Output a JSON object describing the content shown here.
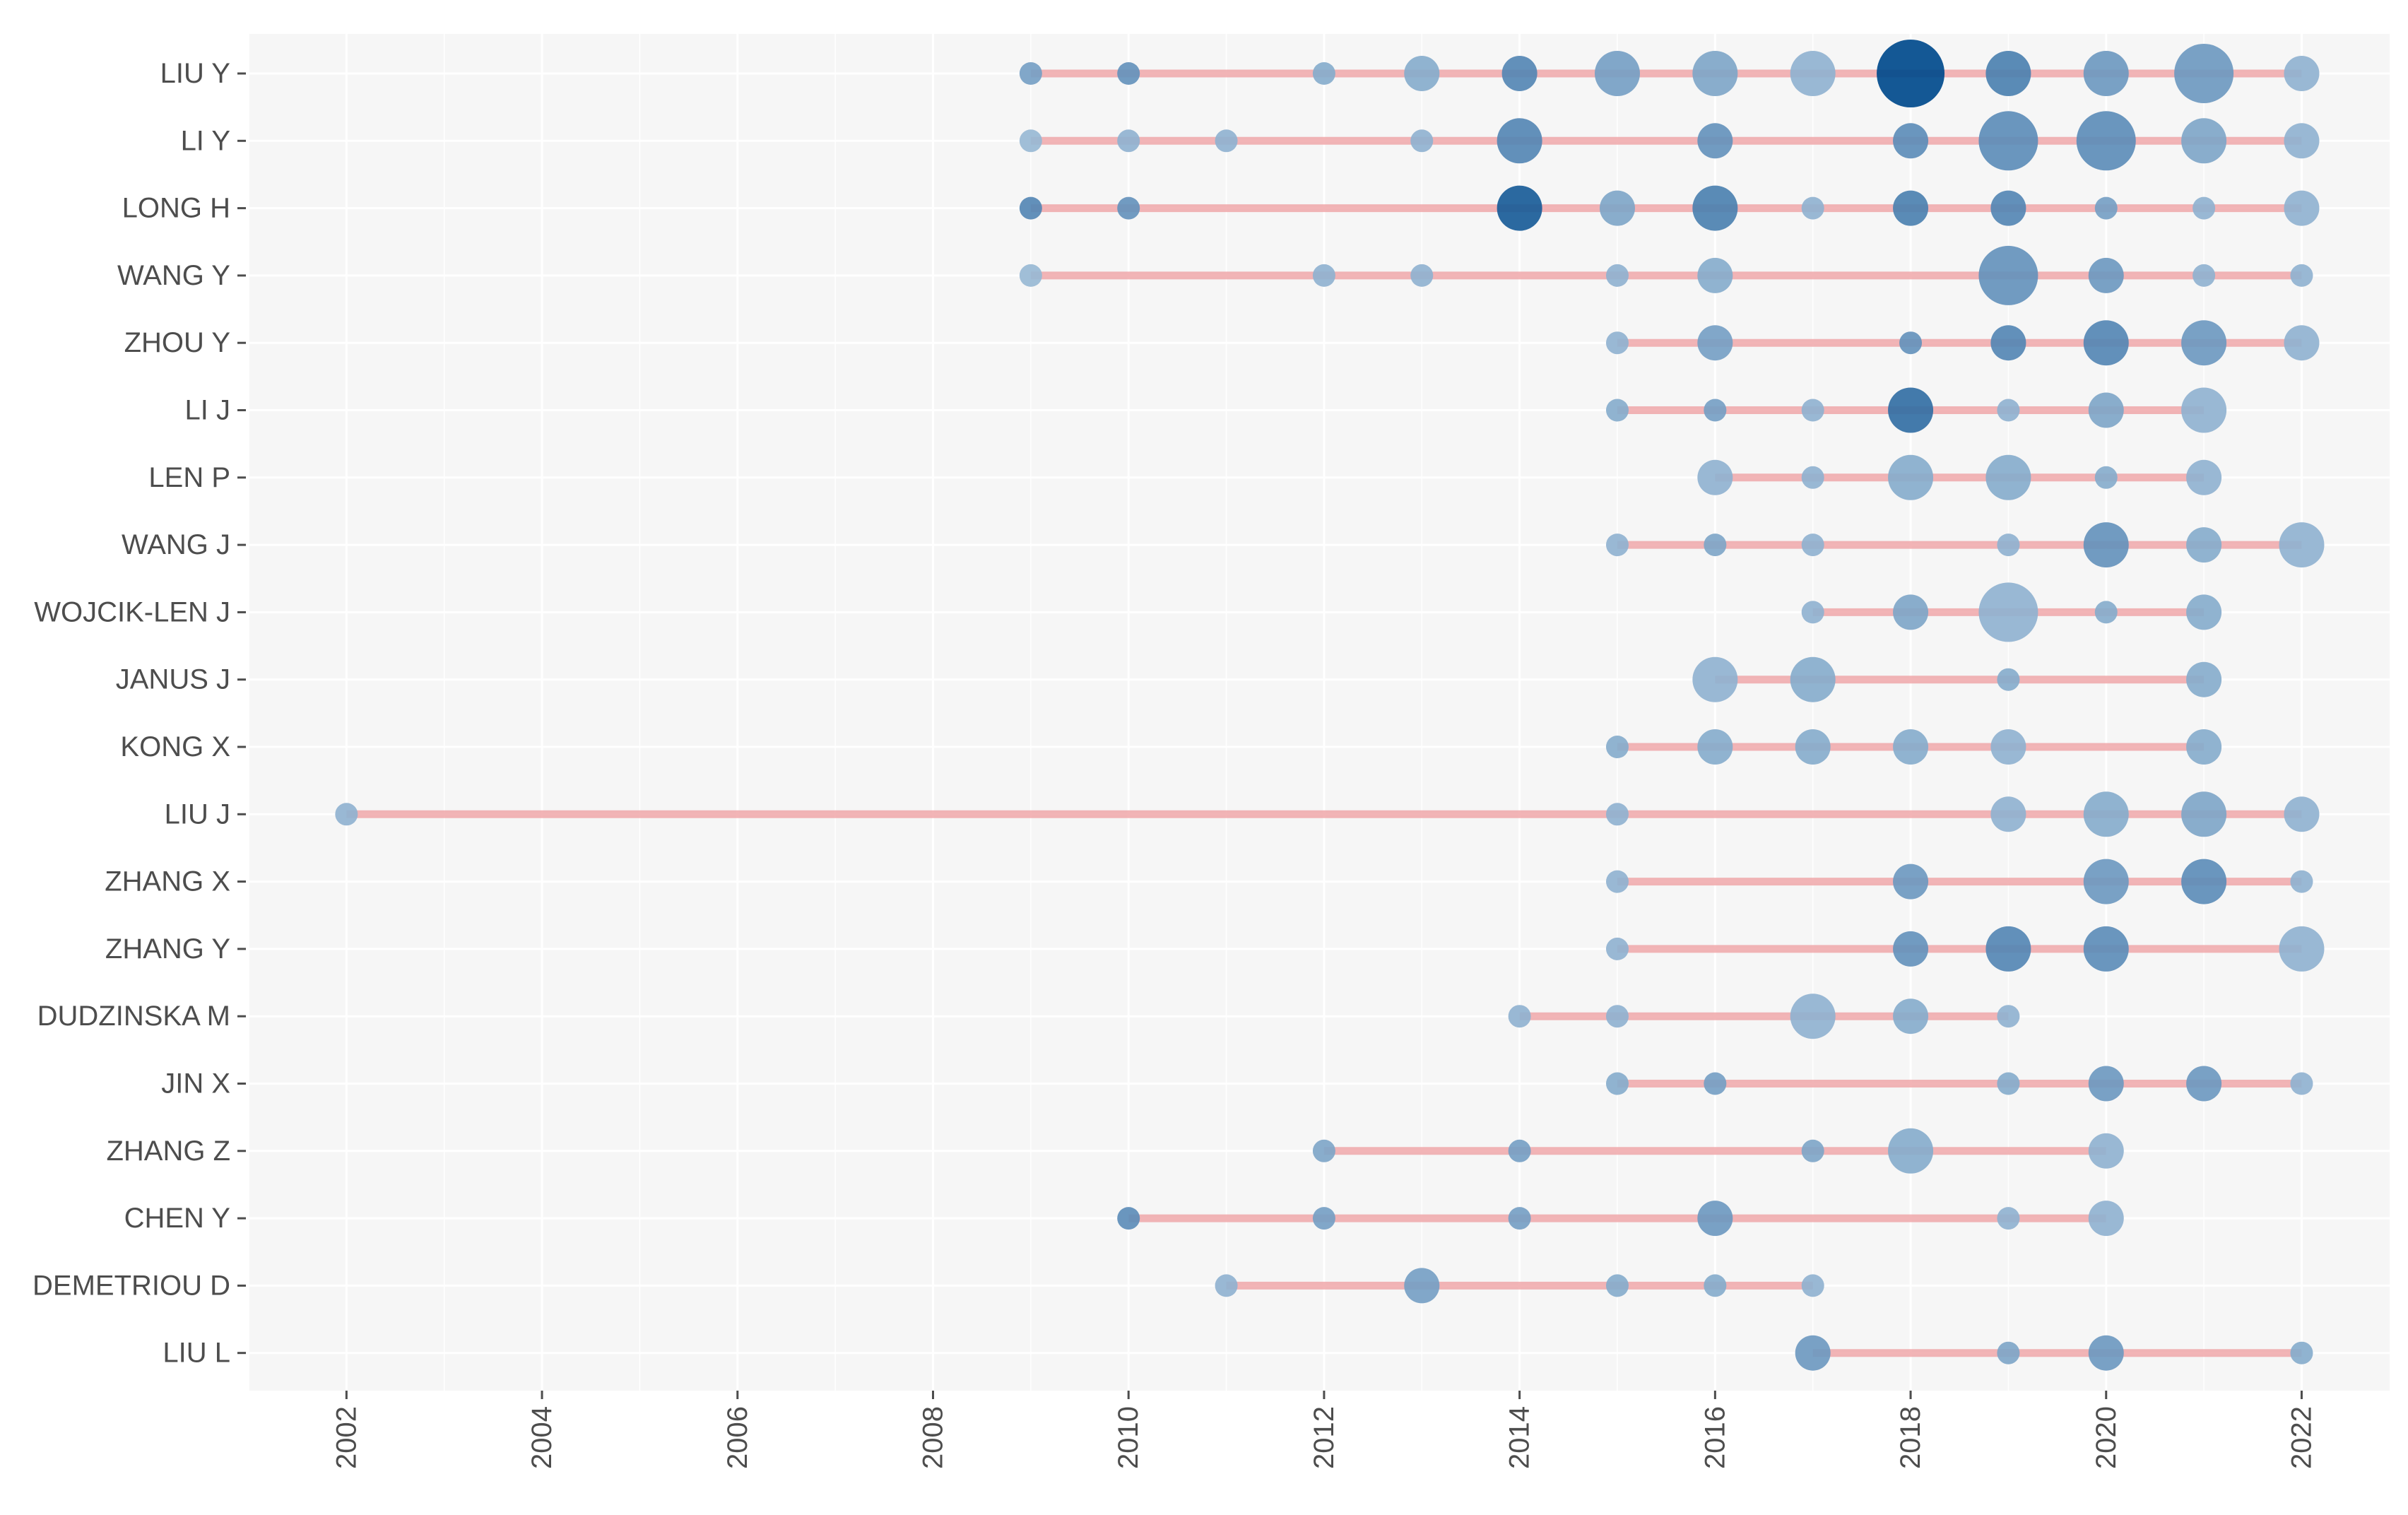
{
  "chart_data": {
    "type": "scatter",
    "title": "",
    "xlabel": "",
    "ylabel": "",
    "xlim": [
      2001,
      2022.9
    ],
    "x_ticks": [
      2002,
      2004,
      2006,
      2008,
      2010,
      2012,
      2014,
      2016,
      2018,
      2020,
      2022
    ],
    "grid": true,
    "colors": {
      "panel_background": "#f6f6f6",
      "grid": "#ffffff",
      "timeline": "#f0a8aa",
      "point_low": "#a9c4dc",
      "point_high": "#004a8c",
      "axis_text": "#4d4d4d"
    },
    "authors": [
      {
        "name": "LIU Y",
        "start": 2009,
        "end": 2022,
        "points": [
          {
            "year": 2009,
            "size": 1,
            "intensity": 0.3
          },
          {
            "year": 2010,
            "size": 1,
            "intensity": 0.4
          },
          {
            "year": 2012,
            "size": 1,
            "intensity": 0.2
          },
          {
            "year": 2013,
            "size": 2,
            "intensity": 0.2
          },
          {
            "year": 2014,
            "size": 2,
            "intensity": 0.5
          },
          {
            "year": 2015,
            "size": 3,
            "intensity": 0.3
          },
          {
            "year": 2016,
            "size": 3,
            "intensity": 0.25
          },
          {
            "year": 2017,
            "size": 3,
            "intensity": 0.15
          },
          {
            "year": 2018,
            "size": 5,
            "intensity": 1.0
          },
          {
            "year": 2019,
            "size": 3,
            "intensity": 0.55
          },
          {
            "year": 2020,
            "size": 3,
            "intensity": 0.35
          },
          {
            "year": 2021,
            "size": 4,
            "intensity": 0.35
          },
          {
            "year": 2022,
            "size": 2,
            "intensity": 0.15
          }
        ]
      },
      {
        "name": "LI Y",
        "start": 2009,
        "end": 2022,
        "points": [
          {
            "year": 2009,
            "size": 1,
            "intensity": 0.1
          },
          {
            "year": 2010,
            "size": 1,
            "intensity": 0.15
          },
          {
            "year": 2011,
            "size": 1,
            "intensity": 0.15
          },
          {
            "year": 2013,
            "size": 1,
            "intensity": 0.15
          },
          {
            "year": 2014,
            "size": 3,
            "intensity": 0.5
          },
          {
            "year": 2016,
            "size": 2,
            "intensity": 0.4
          },
          {
            "year": 2018,
            "size": 2,
            "intensity": 0.45
          },
          {
            "year": 2019,
            "size": 4,
            "intensity": 0.45
          },
          {
            "year": 2020,
            "size": 4,
            "intensity": 0.45
          },
          {
            "year": 2021,
            "size": 3,
            "intensity": 0.25
          },
          {
            "year": 2022,
            "size": 2,
            "intensity": 0.15
          }
        ]
      },
      {
        "name": "LONG H",
        "start": 2009,
        "end": 2022,
        "points": [
          {
            "year": 2009,
            "size": 1,
            "intensity": 0.5
          },
          {
            "year": 2010,
            "size": 1,
            "intensity": 0.4
          },
          {
            "year": 2014,
            "size": 3,
            "intensity": 0.85
          },
          {
            "year": 2015,
            "size": 2,
            "intensity": 0.25
          },
          {
            "year": 2016,
            "size": 3,
            "intensity": 0.55
          },
          {
            "year": 2017,
            "size": 1,
            "intensity": 0.15
          },
          {
            "year": 2018,
            "size": 2,
            "intensity": 0.55
          },
          {
            "year": 2019,
            "size": 2,
            "intensity": 0.5
          },
          {
            "year": 2020,
            "size": 1,
            "intensity": 0.3
          },
          {
            "year": 2021,
            "size": 1,
            "intensity": 0.15
          },
          {
            "year": 2022,
            "size": 2,
            "intensity": 0.15
          }
        ]
      },
      {
        "name": "WANG Y",
        "start": 2009,
        "end": 2022,
        "points": [
          {
            "year": 2009,
            "size": 1,
            "intensity": 0.1
          },
          {
            "year": 2012,
            "size": 1,
            "intensity": 0.15
          },
          {
            "year": 2013,
            "size": 1,
            "intensity": 0.15
          },
          {
            "year": 2015,
            "size": 1,
            "intensity": 0.15
          },
          {
            "year": 2016,
            "size": 2,
            "intensity": 0.2
          },
          {
            "year": 2019,
            "size": 4,
            "intensity": 0.4
          },
          {
            "year": 2020,
            "size": 2,
            "intensity": 0.35
          },
          {
            "year": 2021,
            "size": 1,
            "intensity": 0.15
          },
          {
            "year": 2022,
            "size": 1,
            "intensity": 0.15
          }
        ]
      },
      {
        "name": "ZHOU Y",
        "start": 2015,
        "end": 2022,
        "points": [
          {
            "year": 2015,
            "size": 1,
            "intensity": 0.15
          },
          {
            "year": 2016,
            "size": 2,
            "intensity": 0.3
          },
          {
            "year": 2018,
            "size": 1,
            "intensity": 0.4
          },
          {
            "year": 2019,
            "size": 2,
            "intensity": 0.5
          },
          {
            "year": 2020,
            "size": 3,
            "intensity": 0.5
          },
          {
            "year": 2021,
            "size": 3,
            "intensity": 0.35
          },
          {
            "year": 2022,
            "size": 2,
            "intensity": 0.15
          }
        ]
      },
      {
        "name": "LI J",
        "start": 2015,
        "end": 2021,
        "points": [
          {
            "year": 2015,
            "size": 1,
            "intensity": 0.2
          },
          {
            "year": 2016,
            "size": 1,
            "intensity": 0.3
          },
          {
            "year": 2017,
            "size": 1,
            "intensity": 0.15
          },
          {
            "year": 2018,
            "size": 3,
            "intensity": 0.7
          },
          {
            "year": 2019,
            "size": 1,
            "intensity": 0.15
          },
          {
            "year": 2020,
            "size": 2,
            "intensity": 0.25
          },
          {
            "year": 2021,
            "size": 3,
            "intensity": 0.15
          }
        ]
      },
      {
        "name": "LEN P",
        "start": 2016,
        "end": 2021,
        "points": [
          {
            "year": 2016,
            "size": 2,
            "intensity": 0.15
          },
          {
            "year": 2017,
            "size": 1,
            "intensity": 0.15
          },
          {
            "year": 2018,
            "size": 3,
            "intensity": 0.2
          },
          {
            "year": 2019,
            "size": 3,
            "intensity": 0.2
          },
          {
            "year": 2020,
            "size": 1,
            "intensity": 0.2
          },
          {
            "year": 2021,
            "size": 2,
            "intensity": 0.15
          }
        ]
      },
      {
        "name": "WANG J",
        "start": 2015,
        "end": 2022,
        "points": [
          {
            "year": 2015,
            "size": 1,
            "intensity": 0.15
          },
          {
            "year": 2016,
            "size": 1,
            "intensity": 0.25
          },
          {
            "year": 2017,
            "size": 1,
            "intensity": 0.15
          },
          {
            "year": 2019,
            "size": 1,
            "intensity": 0.15
          },
          {
            "year": 2020,
            "size": 3,
            "intensity": 0.4
          },
          {
            "year": 2021,
            "size": 2,
            "intensity": 0.2
          },
          {
            "year": 2022,
            "size": 3,
            "intensity": 0.15
          }
        ]
      },
      {
        "name": "WOJCIK-LEN J",
        "start": 2017,
        "end": 2021,
        "points": [
          {
            "year": 2017,
            "size": 1,
            "intensity": 0.15
          },
          {
            "year": 2018,
            "size": 2,
            "intensity": 0.25
          },
          {
            "year": 2019,
            "size": 4,
            "intensity": 0.15
          },
          {
            "year": 2020,
            "size": 1,
            "intensity": 0.2
          },
          {
            "year": 2021,
            "size": 2,
            "intensity": 0.2
          }
        ]
      },
      {
        "name": "JANUS J",
        "start": 2016,
        "end": 2021,
        "points": [
          {
            "year": 2016,
            "size": 3,
            "intensity": 0.15
          },
          {
            "year": 2017,
            "size": 3,
            "intensity": 0.2
          },
          {
            "year": 2019,
            "size": 1,
            "intensity": 0.2
          },
          {
            "year": 2021,
            "size": 2,
            "intensity": 0.2
          }
        ]
      },
      {
        "name": "KONG X",
        "start": 2015,
        "end": 2021,
        "points": [
          {
            "year": 2015,
            "size": 1,
            "intensity": 0.2
          },
          {
            "year": 2016,
            "size": 2,
            "intensity": 0.2
          },
          {
            "year": 2017,
            "size": 2,
            "intensity": 0.2
          },
          {
            "year": 2018,
            "size": 2,
            "intensity": 0.2
          },
          {
            "year": 2019,
            "size": 2,
            "intensity": 0.15
          },
          {
            "year": 2021,
            "size": 2,
            "intensity": 0.2
          }
        ]
      },
      {
        "name": "LIU J",
        "start": 2002,
        "end": 2022,
        "points": [
          {
            "year": 2002,
            "size": 1,
            "intensity": 0.15
          },
          {
            "year": 2015,
            "size": 1,
            "intensity": 0.15
          },
          {
            "year": 2019,
            "size": 2,
            "intensity": 0.15
          },
          {
            "year": 2020,
            "size": 3,
            "intensity": 0.2
          },
          {
            "year": 2021,
            "size": 3,
            "intensity": 0.25
          },
          {
            "year": 2022,
            "size": 2,
            "intensity": 0.15
          }
        ]
      },
      {
        "name": "ZHANG X",
        "start": 2015,
        "end": 2022,
        "points": [
          {
            "year": 2015,
            "size": 1,
            "intensity": 0.15
          },
          {
            "year": 2018,
            "size": 2,
            "intensity": 0.35
          },
          {
            "year": 2020,
            "size": 3,
            "intensity": 0.35
          },
          {
            "year": 2021,
            "size": 3,
            "intensity": 0.45
          },
          {
            "year": 2022,
            "size": 1,
            "intensity": 0.15
          }
        ]
      },
      {
        "name": "ZHANG Y",
        "start": 2015,
        "end": 2022,
        "points": [
          {
            "year": 2015,
            "size": 1,
            "intensity": 0.15
          },
          {
            "year": 2018,
            "size": 2,
            "intensity": 0.4
          },
          {
            "year": 2019,
            "size": 3,
            "intensity": 0.5
          },
          {
            "year": 2020,
            "size": 3,
            "intensity": 0.45
          },
          {
            "year": 2022,
            "size": 3,
            "intensity": 0.15
          }
        ]
      },
      {
        "name": "DUDZINSKA M",
        "start": 2014,
        "end": 2019,
        "points": [
          {
            "year": 2014,
            "size": 1,
            "intensity": 0.15
          },
          {
            "year": 2015,
            "size": 1,
            "intensity": 0.15
          },
          {
            "year": 2017,
            "size": 3,
            "intensity": 0.15
          },
          {
            "year": 2018,
            "size": 2,
            "intensity": 0.2
          },
          {
            "year": 2019,
            "size": 1,
            "intensity": 0.15
          }
        ]
      },
      {
        "name": "JIN X",
        "start": 2015,
        "end": 2022,
        "points": [
          {
            "year": 2015,
            "size": 1,
            "intensity": 0.2
          },
          {
            "year": 2016,
            "size": 1,
            "intensity": 0.3
          },
          {
            "year": 2019,
            "size": 1,
            "intensity": 0.2
          },
          {
            "year": 2020,
            "size": 2,
            "intensity": 0.35
          },
          {
            "year": 2021,
            "size": 2,
            "intensity": 0.35
          },
          {
            "year": 2022,
            "size": 1,
            "intensity": 0.15
          }
        ]
      },
      {
        "name": "ZHANG Z",
        "start": 2012,
        "end": 2020,
        "points": [
          {
            "year": 2012,
            "size": 1,
            "intensity": 0.25
          },
          {
            "year": 2014,
            "size": 1,
            "intensity": 0.3
          },
          {
            "year": 2017,
            "size": 1,
            "intensity": 0.25
          },
          {
            "year": 2018,
            "size": 3,
            "intensity": 0.2
          },
          {
            "year": 2020,
            "size": 2,
            "intensity": 0.15
          }
        ]
      },
      {
        "name": "CHEN Y",
        "start": 2010,
        "end": 2020,
        "points": [
          {
            "year": 2010,
            "size": 1,
            "intensity": 0.45
          },
          {
            "year": 2012,
            "size": 1,
            "intensity": 0.3
          },
          {
            "year": 2014,
            "size": 1,
            "intensity": 0.3
          },
          {
            "year": 2016,
            "size": 2,
            "intensity": 0.35
          },
          {
            "year": 2019,
            "size": 1,
            "intensity": 0.15
          },
          {
            "year": 2020,
            "size": 2,
            "intensity": 0.15
          }
        ]
      },
      {
        "name": "DEMETRIOU D",
        "start": 2011,
        "end": 2017,
        "points": [
          {
            "year": 2011,
            "size": 1,
            "intensity": 0.15
          },
          {
            "year": 2013,
            "size": 2,
            "intensity": 0.3
          },
          {
            "year": 2015,
            "size": 1,
            "intensity": 0.2
          },
          {
            "year": 2016,
            "size": 1,
            "intensity": 0.2
          },
          {
            "year": 2017,
            "size": 1,
            "intensity": 0.15
          }
        ]
      },
      {
        "name": "LIU L",
        "start": 2017,
        "end": 2022,
        "points": [
          {
            "year": 2017,
            "size": 2,
            "intensity": 0.35
          },
          {
            "year": 2019,
            "size": 1,
            "intensity": 0.25
          },
          {
            "year": 2020,
            "size": 2,
            "intensity": 0.35
          },
          {
            "year": 2022,
            "size": 1,
            "intensity": 0.2
          }
        ]
      }
    ]
  }
}
